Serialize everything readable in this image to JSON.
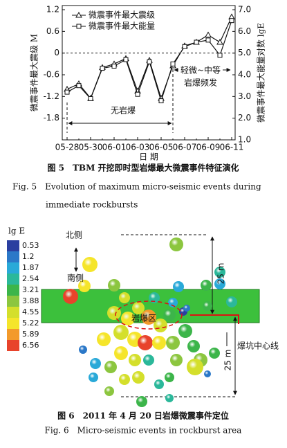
{
  "chart_data": {
    "type": "line",
    "categories": [
      "05-28",
      null,
      "05-30",
      null,
      "06-01",
      null,
      "06-03",
      null,
      "06-05",
      null,
      "06-07",
      null,
      "06-09",
      null,
      "06-11"
    ],
    "series": [
      {
        "name": "微震事件最大震级",
        "color": "#111111",
        "marker": "triangle",
        "values": [
          -1.0,
          -0.85,
          -1.25,
          -0.4,
          -0.3,
          -0.15,
          -1.05,
          -0.2,
          -1.25,
          -0.35,
          0.2,
          0.3,
          0.5,
          0.3,
          1.0
        ]
      },
      {
        "name": "微震事件最大能量",
        "color": "#111111",
        "marker": "square",
        "axis": "y2",
        "values": [
          3.2,
          3.5,
          2.9,
          4.3,
          4.4,
          4.7,
          3.1,
          4.6,
          2.8,
          4.5,
          5.3,
          5.5,
          5.6,
          4.9,
          6.5
        ]
      }
    ],
    "ylim": [
      -2.4,
      1.2
    ],
    "yticks": [
      1.2,
      0.6,
      0,
      -0.6,
      -1.2,
      -1.8
    ],
    "y2lim": [
      1.0,
      7.0
    ],
    "y2ticks": [
      {
        "value": 7,
        "label": "7.0"
      },
      {
        "value": 6,
        "label": "6.0"
      },
      {
        "value": 5,
        "label": "5.0"
      },
      {
        "value": 4,
        "label": "4.0"
      },
      {
        "value": 3,
        "label": "3.0"
      },
      {
        "value": 2,
        "label": "2.0"
      },
      {
        "value": 1,
        "label": "1.0"
      }
    ],
    "ylabel": "微震事件最大震级 M",
    "y2label": "微震事件最大能量对数 lgE",
    "xlabel": "日 期",
    "legend": "upper left",
    "annotations": [
      "无岩爆",
      "轻微~中等",
      "岩爆频发"
    ]
  },
  "captions": {
    "fig5_cn": "图 5　TBM 开挖即时型岩爆最大微震事件特征演化",
    "fig5_en_1": "Fig. 5　Evolution of maximum micro-seismic events during",
    "fig5_en_2": "immediate rockbursts",
    "fig6_cn": "图 6　2011 年 4 月 20 日岩爆微震事件定位",
    "fig6_en": "Fig. 6　Micro-seismic events in rockburst area"
  },
  "figure6": {
    "colorbar": {
      "title": "lg E",
      "ticks": [
        0.53,
        1.2,
        1.87,
        2.54,
        3.21,
        3.88,
        4.55,
        5.22,
        5.89,
        6.56
      ],
      "colors": [
        "#2a3fa0",
        "#2b78c8",
        "#29a9d8",
        "#2bb89a",
        "#3cb54a",
        "#8cc63f",
        "#d4df2b",
        "#f5e52a",
        "#f39a2b",
        "#e8432b"
      ]
    },
    "labels": {
      "north": "北侧",
      "south": "南侧",
      "zone": "岩爆区",
      "dist_top": "25 m",
      "dist_bottom": "25 m",
      "centerline": "爆坑中心线"
    }
  }
}
